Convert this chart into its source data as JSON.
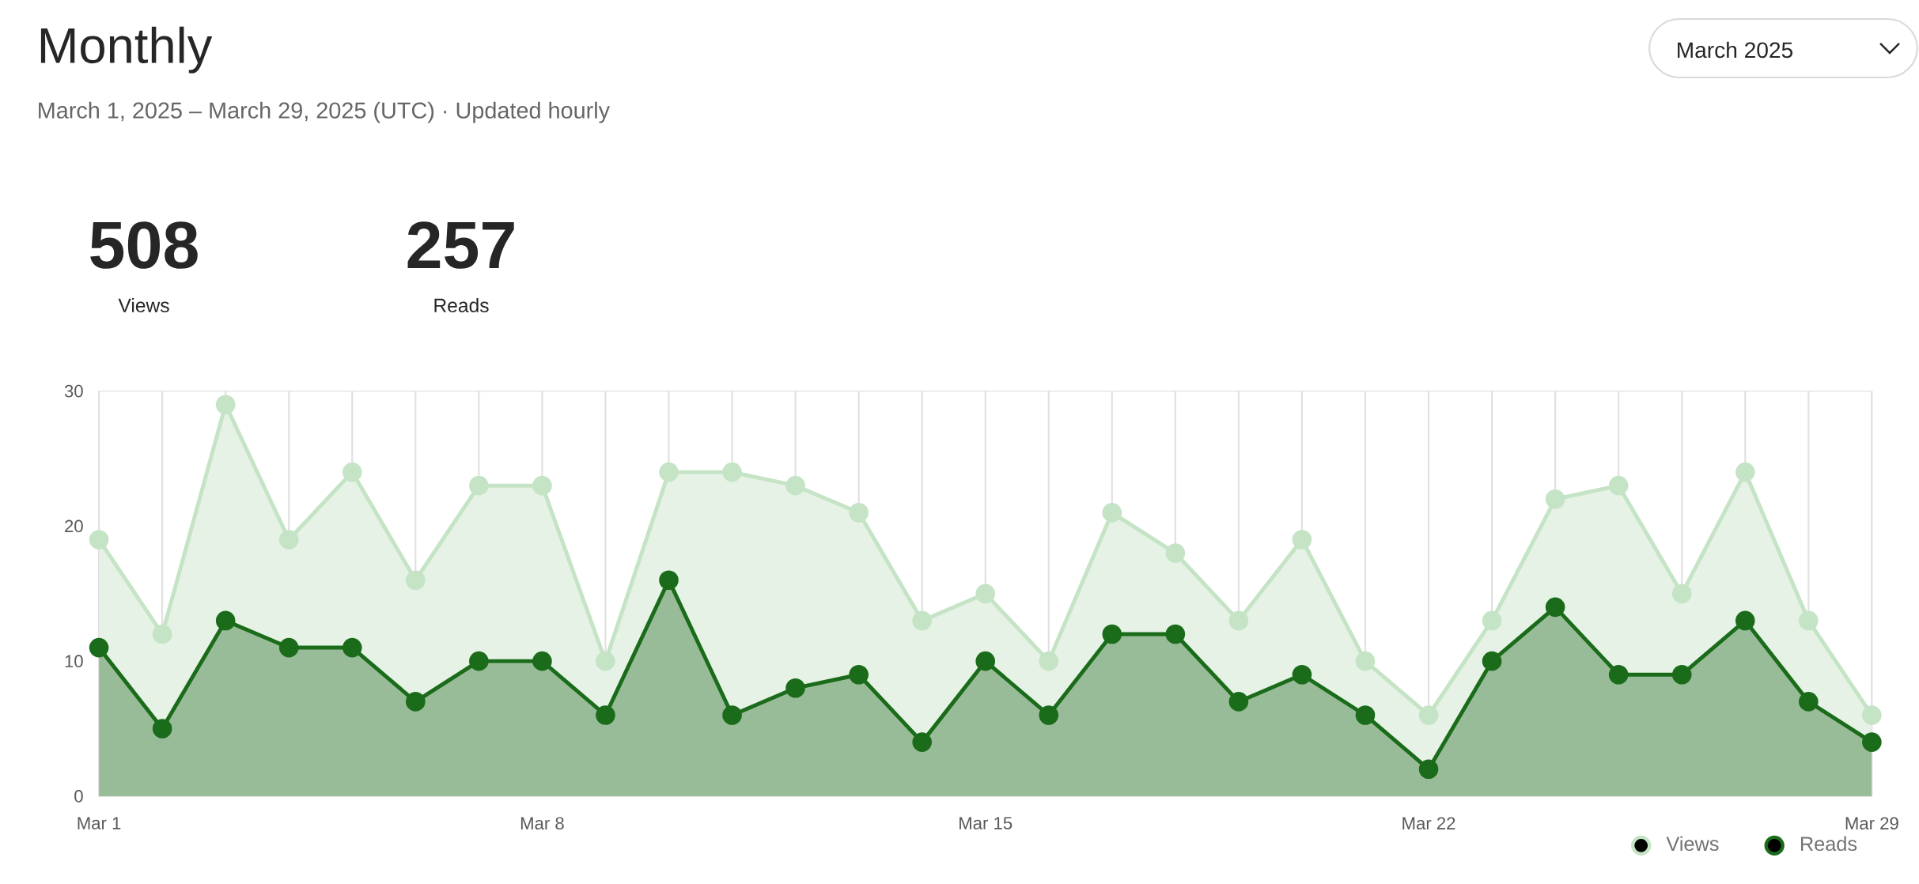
{
  "chart_data": {
    "type": "area",
    "title": "Monthly",
    "subtitle": "March 1, 2025 – March 29, 2025 (UTC)  ·  Updated hourly",
    "annotations": [
      "March 2025",
      "508",
      "Views",
      "257",
      "Reads"
    ],
    "categories": [
      "Mar 1",
      null,
      null,
      null,
      null,
      null,
      null,
      "Mar 8",
      null,
      null,
      null,
      null,
      null,
      null,
      "Mar 15",
      null,
      null,
      null,
      null,
      null,
      null,
      "Mar 22",
      null,
      null,
      null,
      null,
      null,
      null,
      "Mar 29"
    ],
    "series": [
      {
        "name": "Views",
        "color": "#c5e3c5",
        "values": [
          19,
          12,
          29,
          19,
          24,
          16,
          23,
          23,
          10,
          24,
          24,
          23,
          21,
          13,
          15,
          10,
          21,
          18,
          13,
          19,
          10,
          6,
          13,
          22,
          23,
          15,
          24,
          13,
          6
        ]
      },
      {
        "name": "Reads",
        "color": "#1a6b1a",
        "values": [
          11,
          5,
          13,
          11,
          11,
          7,
          10,
          10,
          6,
          16,
          6,
          8,
          9,
          4,
          10,
          6,
          12,
          12,
          7,
          9,
          6,
          2,
          10,
          14,
          9,
          9,
          13,
          7,
          4
        ]
      }
    ],
    "ylim": [
      0,
      30
    ],
    "yticks": [
      0,
      10,
      20,
      30
    ],
    "grid": "x",
    "legend": "bottom right",
    "marker": "circle",
    "line_style": "solid"
  }
}
